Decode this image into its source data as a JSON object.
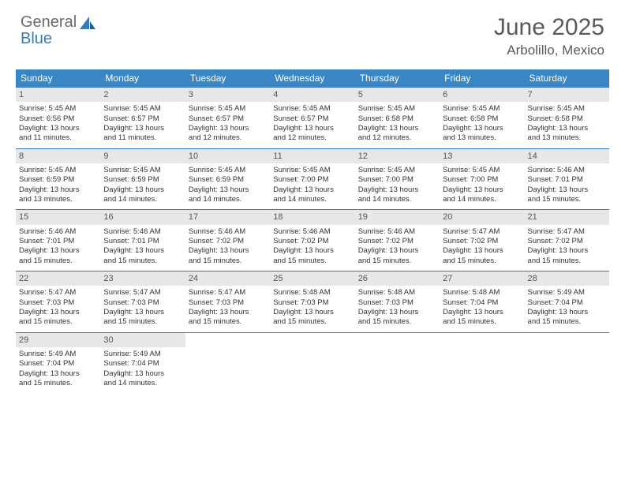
{
  "brand": {
    "part1": "General",
    "part2": "Blue"
  },
  "title": "June 2025",
  "location": "Arbolillo, Mexico",
  "colors": {
    "header_bg": "#3a86c5",
    "header_fg": "#ffffff",
    "daynum_bg": "#e7e7e7",
    "rule": "#3a7ab8",
    "brand_gray": "#6b6b6b",
    "brand_blue": "#3a7ab8"
  },
  "dow": [
    "Sunday",
    "Monday",
    "Tuesday",
    "Wednesday",
    "Thursday",
    "Friday",
    "Saturday"
  ],
  "weeks": [
    [
      {
        "n": "1",
        "sr": "Sunrise: 5:45 AM",
        "ss": "Sunset: 6:56 PM",
        "d1": "Daylight: 13 hours",
        "d2": "and 11 minutes."
      },
      {
        "n": "2",
        "sr": "Sunrise: 5:45 AM",
        "ss": "Sunset: 6:57 PM",
        "d1": "Daylight: 13 hours",
        "d2": "and 11 minutes."
      },
      {
        "n": "3",
        "sr": "Sunrise: 5:45 AM",
        "ss": "Sunset: 6:57 PM",
        "d1": "Daylight: 13 hours",
        "d2": "and 12 minutes."
      },
      {
        "n": "4",
        "sr": "Sunrise: 5:45 AM",
        "ss": "Sunset: 6:57 PM",
        "d1": "Daylight: 13 hours",
        "d2": "and 12 minutes."
      },
      {
        "n": "5",
        "sr": "Sunrise: 5:45 AM",
        "ss": "Sunset: 6:58 PM",
        "d1": "Daylight: 13 hours",
        "d2": "and 12 minutes."
      },
      {
        "n": "6",
        "sr": "Sunrise: 5:45 AM",
        "ss": "Sunset: 6:58 PM",
        "d1": "Daylight: 13 hours",
        "d2": "and 13 minutes."
      },
      {
        "n": "7",
        "sr": "Sunrise: 5:45 AM",
        "ss": "Sunset: 6:58 PM",
        "d1": "Daylight: 13 hours",
        "d2": "and 13 minutes."
      }
    ],
    [
      {
        "n": "8",
        "sr": "Sunrise: 5:45 AM",
        "ss": "Sunset: 6:59 PM",
        "d1": "Daylight: 13 hours",
        "d2": "and 13 minutes."
      },
      {
        "n": "9",
        "sr": "Sunrise: 5:45 AM",
        "ss": "Sunset: 6:59 PM",
        "d1": "Daylight: 13 hours",
        "d2": "and 14 minutes."
      },
      {
        "n": "10",
        "sr": "Sunrise: 5:45 AM",
        "ss": "Sunset: 6:59 PM",
        "d1": "Daylight: 13 hours",
        "d2": "and 14 minutes."
      },
      {
        "n": "11",
        "sr": "Sunrise: 5:45 AM",
        "ss": "Sunset: 7:00 PM",
        "d1": "Daylight: 13 hours",
        "d2": "and 14 minutes."
      },
      {
        "n": "12",
        "sr": "Sunrise: 5:45 AM",
        "ss": "Sunset: 7:00 PM",
        "d1": "Daylight: 13 hours",
        "d2": "and 14 minutes."
      },
      {
        "n": "13",
        "sr": "Sunrise: 5:45 AM",
        "ss": "Sunset: 7:00 PM",
        "d1": "Daylight: 13 hours",
        "d2": "and 14 minutes."
      },
      {
        "n": "14",
        "sr": "Sunrise: 5:46 AM",
        "ss": "Sunset: 7:01 PM",
        "d1": "Daylight: 13 hours",
        "d2": "and 15 minutes."
      }
    ],
    [
      {
        "n": "15",
        "sr": "Sunrise: 5:46 AM",
        "ss": "Sunset: 7:01 PM",
        "d1": "Daylight: 13 hours",
        "d2": "and 15 minutes."
      },
      {
        "n": "16",
        "sr": "Sunrise: 5:46 AM",
        "ss": "Sunset: 7:01 PM",
        "d1": "Daylight: 13 hours",
        "d2": "and 15 minutes."
      },
      {
        "n": "17",
        "sr": "Sunrise: 5:46 AM",
        "ss": "Sunset: 7:02 PM",
        "d1": "Daylight: 13 hours",
        "d2": "and 15 minutes."
      },
      {
        "n": "18",
        "sr": "Sunrise: 5:46 AM",
        "ss": "Sunset: 7:02 PM",
        "d1": "Daylight: 13 hours",
        "d2": "and 15 minutes."
      },
      {
        "n": "19",
        "sr": "Sunrise: 5:46 AM",
        "ss": "Sunset: 7:02 PM",
        "d1": "Daylight: 13 hours",
        "d2": "and 15 minutes."
      },
      {
        "n": "20",
        "sr": "Sunrise: 5:47 AM",
        "ss": "Sunset: 7:02 PM",
        "d1": "Daylight: 13 hours",
        "d2": "and 15 minutes."
      },
      {
        "n": "21",
        "sr": "Sunrise: 5:47 AM",
        "ss": "Sunset: 7:02 PM",
        "d1": "Daylight: 13 hours",
        "d2": "and 15 minutes."
      }
    ],
    [
      {
        "n": "22",
        "sr": "Sunrise: 5:47 AM",
        "ss": "Sunset: 7:03 PM",
        "d1": "Daylight: 13 hours",
        "d2": "and 15 minutes."
      },
      {
        "n": "23",
        "sr": "Sunrise: 5:47 AM",
        "ss": "Sunset: 7:03 PM",
        "d1": "Daylight: 13 hours",
        "d2": "and 15 minutes."
      },
      {
        "n": "24",
        "sr": "Sunrise: 5:47 AM",
        "ss": "Sunset: 7:03 PM",
        "d1": "Daylight: 13 hours",
        "d2": "and 15 minutes."
      },
      {
        "n": "25",
        "sr": "Sunrise: 5:48 AM",
        "ss": "Sunset: 7:03 PM",
        "d1": "Daylight: 13 hours",
        "d2": "and 15 minutes."
      },
      {
        "n": "26",
        "sr": "Sunrise: 5:48 AM",
        "ss": "Sunset: 7:03 PM",
        "d1": "Daylight: 13 hours",
        "d2": "and 15 minutes."
      },
      {
        "n": "27",
        "sr": "Sunrise: 5:48 AM",
        "ss": "Sunset: 7:04 PM",
        "d1": "Daylight: 13 hours",
        "d2": "and 15 minutes."
      },
      {
        "n": "28",
        "sr": "Sunrise: 5:49 AM",
        "ss": "Sunset: 7:04 PM",
        "d1": "Daylight: 13 hours",
        "d2": "and 15 minutes."
      }
    ],
    [
      {
        "n": "29",
        "sr": "Sunrise: 5:49 AM",
        "ss": "Sunset: 7:04 PM",
        "d1": "Daylight: 13 hours",
        "d2": "and 15 minutes."
      },
      {
        "n": "30",
        "sr": "Sunrise: 5:49 AM",
        "ss": "Sunset: 7:04 PM",
        "d1": "Daylight: 13 hours",
        "d2": "and 14 minutes."
      },
      null,
      null,
      null,
      null,
      null
    ]
  ]
}
